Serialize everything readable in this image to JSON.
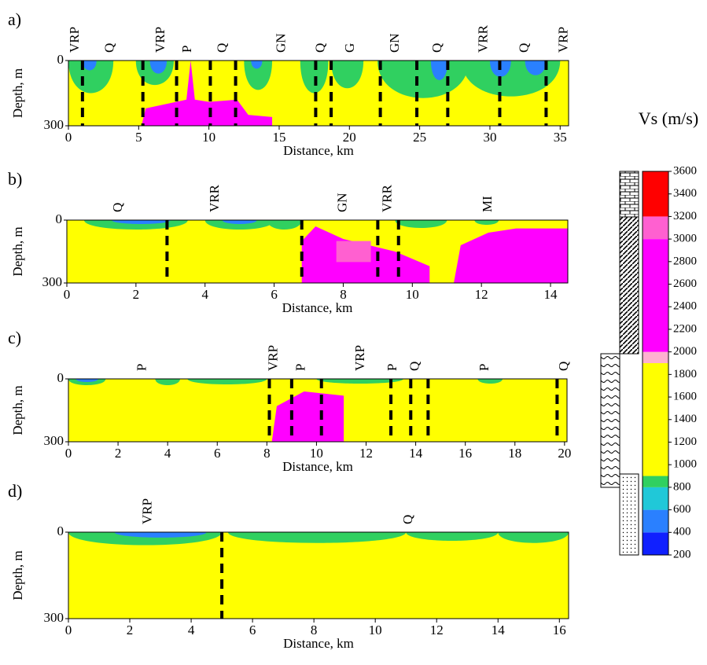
{
  "chart_data": [
    {
      "type": "section",
      "label": "a)",
      "xlabel": "Distance, km",
      "ylabel": "Depth, m",
      "xlim": [
        0,
        35.6
      ],
      "xticks": [
        0,
        5,
        10,
        15,
        20,
        25,
        30,
        35
      ],
      "ylim": [
        0,
        300
      ],
      "yticks": [
        0,
        300
      ],
      "background_vs": 1400,
      "units": [
        {
          "label": "VRP",
          "x": 0.5
        },
        {
          "label": "Q",
          "x": 3
        },
        {
          "label": "VRP",
          "x": 6.6
        },
        {
          "label": "P",
          "x": 8.5
        },
        {
          "label": "Q",
          "x": 11
        },
        {
          "label": "GN",
          "x": 15.2
        },
        {
          "label": "Q",
          "x": 18
        },
        {
          "label": "G",
          "x": 20.1
        },
        {
          "label": "GN",
          "x": 23.3
        },
        {
          "label": "Q",
          "x": 26.3
        },
        {
          "label": "VRR",
          "x": 29.6
        },
        {
          "label": "Q",
          "x": 32.5
        },
        {
          "label": "VRP",
          "x": 35.3
        }
      ],
      "faults": [
        1,
        5.3,
        7.7,
        10.1,
        11.9,
        17.6,
        18.7,
        22.2,
        24.8,
        27,
        30.7,
        34
      ],
      "pockets": [
        {
          "x0": 0,
          "x1": 3.2,
          "depth": 200,
          "vs": 800
        },
        {
          "x0": 4.8,
          "x1": 7.5,
          "depth": 150,
          "vs": 800
        },
        {
          "x0": 12.5,
          "x1": 14.5,
          "depth": 180,
          "vs": 800
        },
        {
          "x0": 16.5,
          "x1": 18.5,
          "depth": 200,
          "vs": 800
        },
        {
          "x0": 18.7,
          "x1": 21,
          "depth": 170,
          "vs": 800
        },
        {
          "x0": 22,
          "x1": 28.5,
          "depth": 230,
          "vs": 800
        },
        {
          "x0": 28,
          "x1": 35,
          "depth": 220,
          "vs": 800
        },
        {
          "x0": 1,
          "x1": 2,
          "depth": 60,
          "vs": 400
        },
        {
          "x0": 5.8,
          "x1": 7,
          "depth": 80,
          "vs": 400
        },
        {
          "x0": 13,
          "x1": 13.8,
          "depth": 50,
          "vs": 400
        },
        {
          "x0": 25.8,
          "x1": 27,
          "depth": 120,
          "vs": 400
        },
        {
          "x0": 30,
          "x1": 31.5,
          "depth": 100,
          "vs": 400
        },
        {
          "x0": 32.5,
          "x1": 34,
          "depth": 90,
          "vs": 400
        }
      ],
      "bodies": [
        {
          "vs": 2800,
          "x": [
            5.2,
            5.5,
            8.4,
            8.7,
            9,
            10,
            12,
            12.8,
            14.5,
            14.5,
            5.2
          ],
          "depth": [
            300,
            220,
            180,
            0,
            180,
            190,
            180,
            250,
            260,
            300,
            300
          ]
        }
      ]
    },
    {
      "type": "section",
      "label": "b)",
      "xlabel": "Distance, km",
      "ylabel": "Depth, m",
      "xlim": [
        0,
        14.5
      ],
      "xticks": [
        0,
        2,
        4,
        6,
        8,
        10,
        12,
        14
      ],
      "ylim": [
        0,
        300
      ],
      "yticks": [
        0,
        300
      ],
      "background_vs": 1400,
      "units": [
        {
          "label": "Q",
          "x": 1.5
        },
        {
          "label": "VRR",
          "x": 4.3
        },
        {
          "label": "GN",
          "x": 8
        },
        {
          "label": "VRR",
          "x": 9.3
        },
        {
          "label": "MI",
          "x": 12.2
        }
      ],
      "faults": [
        2.9,
        6.8,
        9,
        9.6
      ],
      "pockets": [
        {
          "x0": 0.5,
          "x1": 3.5,
          "depth": 60,
          "vs": 800
        },
        {
          "x0": 4,
          "x1": 6,
          "depth": 60,
          "vs": 800
        },
        {
          "x0": 5.8,
          "x1": 6.8,
          "depth": 60,
          "vs": 800
        },
        {
          "x0": 9.5,
          "x1": 11,
          "depth": 50,
          "vs": 800
        },
        {
          "x0": 11.8,
          "x1": 12.5,
          "depth": 30,
          "vs": 800
        },
        {
          "x0": 1.3,
          "x1": 3,
          "depth": 25,
          "vs": 400
        },
        {
          "x0": 4.5,
          "x1": 5.5,
          "depth": 25,
          "vs": 400
        }
      ],
      "bodies": [
        {
          "vs": 2800,
          "x": [
            6.8,
            6.8,
            7.2,
            8,
            9.5,
            10.5,
            10.5
          ],
          "depth": [
            300,
            100,
            30,
            90,
            150,
            220,
            300
          ]
        },
        {
          "vs": 2800,
          "x": [
            11.2,
            11.4,
            12.2,
            13,
            14.5,
            14.5
          ],
          "depth": [
            300,
            120,
            60,
            40,
            40,
            300
          ]
        },
        {
          "vs": 3100,
          "x": [
            7.8,
            8.8,
            8.8,
            7.8
          ],
          "depth": [
            100,
            100,
            200,
            200
          ]
        }
      ]
    },
    {
      "type": "section",
      "label": "c)",
      "xlabel": "Distance, km",
      "ylabel": "Depth, m",
      "xlim": [
        0,
        20.1
      ],
      "xticks": [
        0,
        2,
        4,
        6,
        8,
        10,
        12,
        14,
        16,
        18,
        20
      ],
      "ylim": [
        0,
        300
      ],
      "yticks": [
        0,
        300
      ],
      "background_vs": 1400,
      "units": [
        {
          "label": "P",
          "x": 3
        },
        {
          "label": "VRP",
          "x": 8.3
        },
        {
          "label": "P",
          "x": 9.4
        },
        {
          "label": "VRP",
          "x": 11.8
        },
        {
          "label": "P",
          "x": 13.1
        },
        {
          "label": "Q",
          "x": 14
        },
        {
          "label": "P",
          "x": 16.8
        },
        {
          "label": "Q",
          "x": 20
        }
      ],
      "faults": [
        8.1,
        9,
        10.2,
        13,
        13.8,
        14.5,
        19.7
      ],
      "pockets": [
        {
          "x0": 0,
          "x1": 1.5,
          "depth": 40,
          "vs": 800
        },
        {
          "x0": 3.5,
          "x1": 4.5,
          "depth": 40,
          "vs": 800
        },
        {
          "x0": 4.8,
          "x1": 8,
          "depth": 35,
          "vs": 800
        },
        {
          "x0": 10,
          "x1": 13.5,
          "depth": 30,
          "vs": 800
        },
        {
          "x0": 16.5,
          "x1": 17.5,
          "depth": 30,
          "vs": 800
        },
        {
          "x0": 0.3,
          "x1": 1.2,
          "depth": 20,
          "vs": 400
        }
      ],
      "bodies": [
        {
          "vs": 2800,
          "x": [
            8.2,
            8.4,
            9.5,
            11.1,
            11.1
          ],
          "depth": [
            300,
            130,
            60,
            80,
            300
          ]
        }
      ]
    },
    {
      "type": "section",
      "label": "d)",
      "xlabel": "Distance, km",
      "ylabel": "Depth, m",
      "xlim": [
        0,
        16.3
      ],
      "xticks": [
        0,
        2,
        4,
        6,
        8,
        10,
        12,
        14,
        16
      ],
      "ylim": [
        0,
        300
      ],
      "yticks": [
        0,
        300
      ],
      "background_vs": 1400,
      "units": [
        {
          "label": "VRP",
          "x": 2.6
        },
        {
          "label": "Q",
          "x": 11.1
        }
      ],
      "faults": [
        5
      ],
      "pockets": [
        {
          "x0": 0,
          "x1": 5,
          "depth": 60,
          "vs": 800
        },
        {
          "x0": 5.2,
          "x1": 11,
          "depth": 50,
          "vs": 800
        },
        {
          "x0": 11,
          "x1": 14,
          "depth": 40,
          "vs": 800
        },
        {
          "x0": 14,
          "x1": 16.3,
          "depth": 50,
          "vs": 800
        },
        {
          "x0": 1.5,
          "x1": 4.5,
          "depth": 25,
          "vs": 400
        }
      ],
      "bodies": []
    },
    {
      "type": "colorbar",
      "title": "Vs (m/s)",
      "ylim": [
        200,
        3600
      ],
      "yticks": [
        200,
        400,
        600,
        800,
        1000,
        1200,
        1400,
        1600,
        1800,
        2000,
        2200,
        2400,
        2600,
        2800,
        3000,
        3200,
        3400,
        3600
      ],
      "colorscale": [
        {
          "value": 200,
          "color": "#1020ff"
        },
        {
          "value": 400,
          "color": "#2a80ff"
        },
        {
          "value": 600,
          "color": "#20c8d8"
        },
        {
          "value": 800,
          "color": "#30d060"
        },
        {
          "value": 900,
          "color": "#ffff00"
        },
        {
          "value": 1900,
          "color": "#ffb0d0"
        },
        {
          "value": 2000,
          "color": "#ff00ff"
        },
        {
          "value": 3000,
          "color": "#ff60d0"
        },
        {
          "value": 3200,
          "color": "#ff0000"
        }
      ]
    }
  ]
}
